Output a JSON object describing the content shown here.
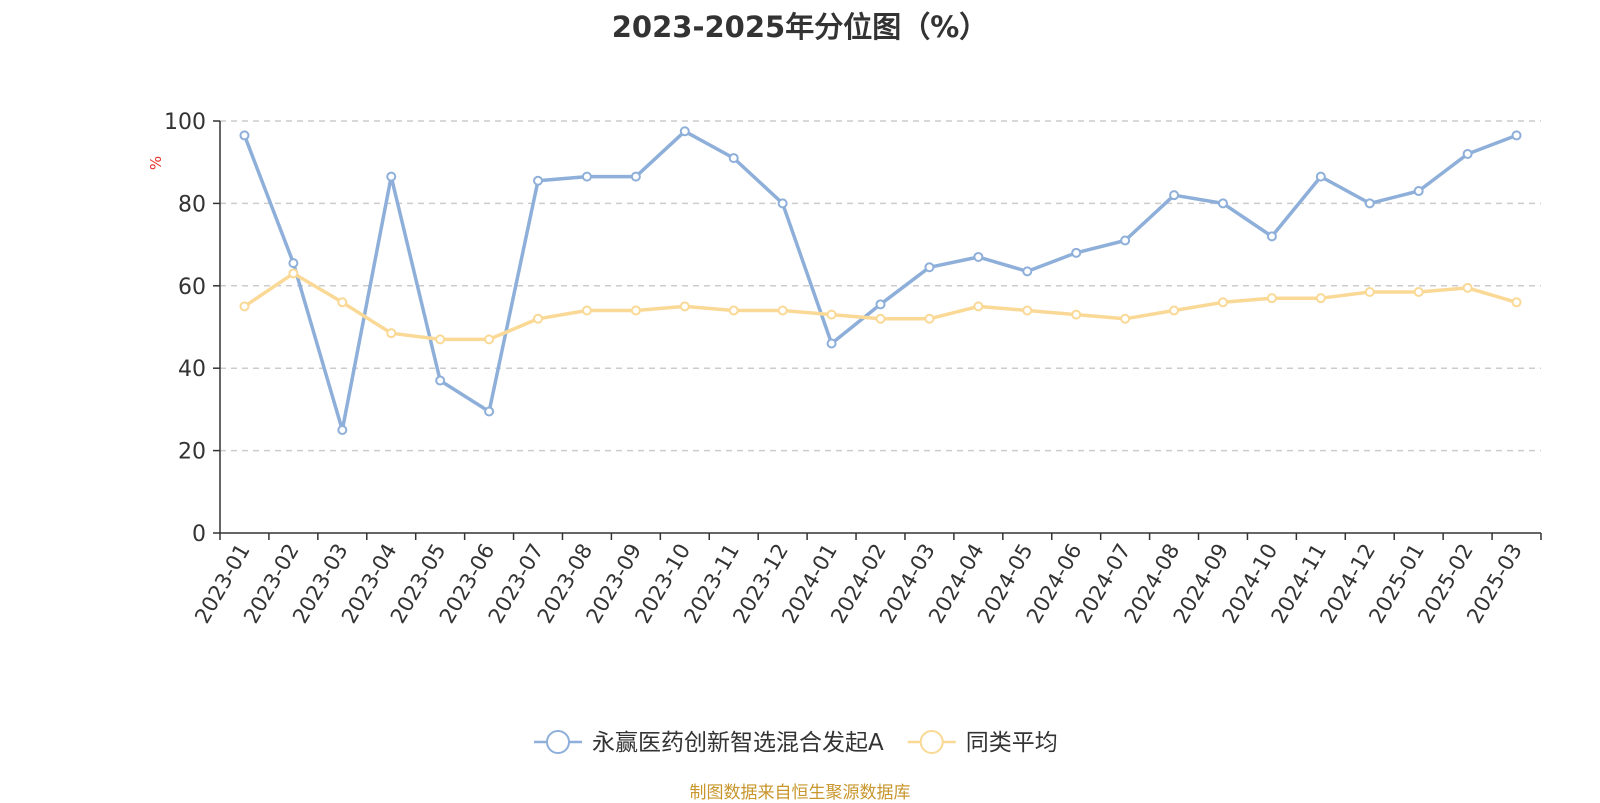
{
  "page": {
    "title": "2023-2025年分位图（%）",
    "source": "制图数据来自恒生聚源数据库"
  },
  "chart_data": {
    "type": "line",
    "title": "2023-2025年分位图（%）",
    "ylabel": "%",
    "xlabel": "",
    "ylim": [
      0,
      100
    ],
    "yticks": [
      0,
      20,
      40,
      60,
      80,
      100
    ],
    "grid": true,
    "legend_position": "bottom",
    "categories": [
      "2023-01",
      "2023-02",
      "2023-03",
      "2023-04",
      "2023-05",
      "2023-06",
      "2023-07",
      "2023-08",
      "2023-09",
      "2023-10",
      "2023-11",
      "2023-12",
      "2024-01",
      "2024-02",
      "2024-03",
      "2024-04",
      "2024-05",
      "2024-06",
      "2024-07",
      "2024-08",
      "2024-09",
      "2024-10",
      "2024-11",
      "2024-12",
      "2025-01",
      "2025-02",
      "2025-03"
    ],
    "series": [
      {
        "name": "永赢医药创新智选混合发起A",
        "color": "#8eafd9",
        "values": [
          96.5,
          65.5,
          25,
          86.5,
          37,
          29.5,
          85.5,
          86.5,
          86.5,
          97.5,
          91,
          80,
          46,
          55.5,
          64.5,
          67,
          63.5,
          68,
          71,
          82,
          80,
          72,
          86.5,
          80,
          83,
          92,
          96.5
        ]
      },
      {
        "name": "同类平均",
        "color": "#fad996",
        "values": [
          55,
          63,
          56,
          48.5,
          47,
          47,
          52,
          54,
          54,
          55,
          54,
          54,
          53,
          52,
          52,
          55,
          54,
          53,
          52,
          54,
          56,
          57,
          57,
          58.5,
          58.5,
          59.5,
          56
        ]
      }
    ]
  }
}
